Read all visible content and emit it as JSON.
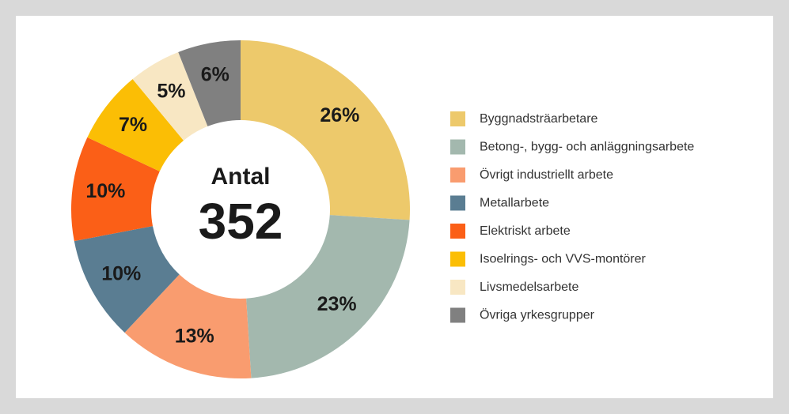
{
  "chart_data": {
    "type": "donut",
    "center_label": "Antal",
    "center_value": 352,
    "categories": [
      "Byggnadsträarbetare",
      "Betong-, bygg- och anläggningsarbete",
      "Övrigt industriellt arbete",
      "Metallarbete",
      "Elektriskt arbete",
      "Isoelrings- och VVS-montörer",
      "Livsmedelsarbete",
      "Övriga yrkesgrupper"
    ],
    "values": [
      26,
      23,
      13,
      10,
      10,
      7,
      5,
      6
    ],
    "value_labels": [
      "26%",
      "23%",
      "13%",
      "10%",
      "10%",
      "7%",
      "5%",
      "6%"
    ],
    "colors": [
      "#edc96b",
      "#a3b8ae",
      "#f99c6f",
      "#5a7d92",
      "#fb5f17",
      "#fbbe05",
      "#f8e7c3",
      "#808080"
    ],
    "legend": "right"
  }
}
